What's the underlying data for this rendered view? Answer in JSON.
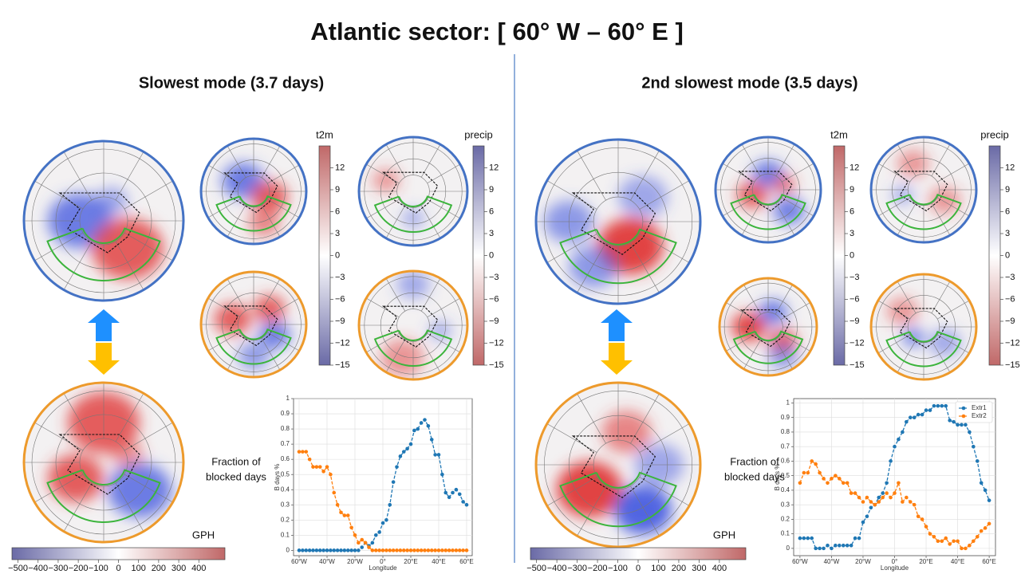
{
  "title": "Atlantic sector: [ 60° W – 60° E ]",
  "panels": [
    {
      "heading": "Slowest mode (3.7 days)",
      "colorbars": [
        {
          "label": "t2m",
          "lim": [
            -15,
            15
          ],
          "colors": [
            "#c06868",
            "#ffffff",
            "#6a6aa6"
          ],
          "ticks": [
            12,
            9,
            6,
            3,
            0,
            {
              "value": -3,
              "label": "−3"
            },
            {
              "value": -6,
              "label": "−6"
            },
            {
              "value": -9,
              "label": "−9"
            },
            {
              "value": -12,
              "label": "−12"
            },
            {
              "value": -15,
              "label": "−15"
            }
          ]
        },
        {
          "label": "precip",
          "lim": [
            -15,
            15
          ],
          "colors": [
            "#6a6aa6",
            "#ffffff",
            "#c06868"
          ],
          "ticks": [
            12,
            9,
            6,
            3,
            0,
            {
              "value": -3,
              "label": "−3"
            },
            {
              "value": -6,
              "label": "−6"
            },
            {
              "value": -9,
              "label": "−9"
            },
            {
              "value": -12,
              "label": "−12"
            },
            {
              "value": -15,
              "label": "−15"
            }
          ]
        }
      ],
      "gph_colorbar": {
        "label": "GPH",
        "lim": [
          -530,
          530
        ],
        "colors": [
          "#6a6aa6",
          "#ffffff",
          "#c06868"
        ],
        "ticks": [
          {
            "value": -500,
            "label": "−500"
          },
          {
            "value": -400,
            "label": "−400"
          },
          {
            "value": -300,
            "label": "−300"
          },
          {
            "value": -200,
            "label": "−200"
          },
          {
            "value": -100,
            "label": "−100"
          },
          0,
          100,
          200,
          300,
          400
        ]
      },
      "caption": [
        "Fraction of",
        "blocked days"
      ]
    },
    {
      "heading": "2nd slowest mode (3.5 days)",
      "colorbars": [
        {
          "label": "t2m",
          "lim": [
            -15,
            15
          ],
          "colors": [
            "#c06868",
            "#ffffff",
            "#6a6aa6"
          ],
          "ticks": [
            12,
            9,
            6,
            3,
            0,
            {
              "value": -3,
              "label": "−3"
            },
            {
              "value": -6,
              "label": "−6"
            },
            {
              "value": -9,
              "label": "−9"
            },
            {
              "value": -12,
              "label": "−12"
            },
            {
              "value": -15,
              "label": "−15"
            }
          ]
        },
        {
          "label": "precip",
          "lim": [
            -15,
            15
          ],
          "colors": [
            "#6a6aa6",
            "#ffffff",
            "#c06868"
          ],
          "ticks": [
            12,
            9,
            6,
            3,
            0,
            {
              "value": -3,
              "label": "−3"
            },
            {
              "value": -6,
              "label": "−6"
            },
            {
              "value": -9,
              "label": "−9"
            },
            {
              "value": -12,
              "label": "−12"
            },
            {
              "value": -15,
              "label": "−15"
            }
          ]
        }
      ],
      "gph_colorbar": {
        "label": "GPH",
        "lim": [
          -530,
          530
        ],
        "colors": [
          "#6a6aa6",
          "#ffffff",
          "#c06868"
        ],
        "ticks": [
          {
            "value": -500,
            "label": "−500"
          },
          {
            "value": -400,
            "label": "−400"
          },
          {
            "value": -300,
            "label": "−300"
          },
          {
            "value": -200,
            "label": "−200"
          },
          {
            "value": -100,
            "label": "−100"
          },
          0,
          100,
          200,
          300,
          400
        ]
      },
      "caption": [
        "Fraction of",
        "blocked days"
      ]
    }
  ],
  "chart_data": [
    {
      "type": "line",
      "xlabel": "Longitude",
      "ylabel": "B days %",
      "x": [
        -60,
        -57.5,
        -55,
        -52.5,
        -50,
        -47.5,
        -45,
        -42.5,
        -40,
        -37.5,
        -35,
        -32.5,
        -30,
        -27.5,
        -25,
        -22.5,
        -20,
        -17.5,
        -15,
        -12.5,
        -10,
        -7.5,
        -5,
        -2.5,
        0,
        2.5,
        5,
        7.5,
        10,
        12.5,
        15,
        17.5,
        20,
        22.5,
        25,
        27.5,
        30,
        32.5,
        35,
        37.5,
        40,
        42.5,
        45,
        47.5,
        50,
        52.5,
        55,
        57.5,
        60
      ],
      "series": [
        {
          "color": "#1f77b4",
          "values": [
            0,
            0,
            0,
            0,
            0,
            0,
            0,
            0,
            0,
            0,
            0,
            0,
            0,
            0,
            0,
            0,
            0,
            0,
            0.02,
            0.05,
            0.03,
            0.05,
            0.1,
            0.12,
            0.18,
            0.2,
            0.3,
            0.45,
            0.55,
            0.62,
            0.65,
            0.67,
            0.7,
            0.79,
            0.8,
            0.84,
            0.86,
            0.82,
            0.73,
            0.63,
            0.63,
            0.5,
            0.38,
            0.35,
            0.38,
            0.4,
            0.37,
            0.32,
            0.3
          ]
        },
        {
          "color": "#ff7f0e",
          "values": [
            0.65,
            0.65,
            0.65,
            0.6,
            0.55,
            0.55,
            0.55,
            0.52,
            0.55,
            0.5,
            0.38,
            0.3,
            0.25,
            0.23,
            0.23,
            0.15,
            0.1,
            0.05,
            0.07,
            0.05,
            0.02,
            0,
            0,
            0,
            0,
            0,
            0,
            0,
            0,
            0,
            0,
            0,
            0,
            0,
            0,
            0,
            0,
            0,
            0,
            0,
            0,
            0,
            0,
            0,
            0,
            0,
            0,
            0,
            0
          ]
        }
      ],
      "xlim": [
        -64,
        64
      ],
      "xticks": [
        {
          "value": -60,
          "label": "60°W"
        },
        {
          "value": -40,
          "label": "40°W"
        },
        {
          "value": -20,
          "label": "20°W"
        },
        {
          "value": 0,
          "label": "0°"
        },
        {
          "value": 20,
          "label": "20°E"
        },
        {
          "value": 40,
          "label": "40°E"
        },
        {
          "value": 60,
          "label": "60°E"
        }
      ],
      "ylim": [
        -0.035,
        1.0
      ],
      "yticks": [
        0,
        0.1,
        0.2,
        0.3,
        0.4,
        0.5,
        0.6,
        0.7,
        0.8,
        0.9,
        1
      ],
      "grid": true
    },
    {
      "type": "line",
      "xlabel": "Longitude",
      "ylabel": "B days %",
      "x": [
        -60,
        -57.5,
        -55,
        -52.5,
        -50,
        -47.5,
        -45,
        -42.5,
        -40,
        -37.5,
        -35,
        -32.5,
        -30,
        -27.5,
        -25,
        -22.5,
        -20,
        -17.5,
        -15,
        -12.5,
        -10,
        -7.5,
        -5,
        -2.5,
        0,
        2.5,
        5,
        7.5,
        10,
        12.5,
        15,
        17.5,
        20,
        22.5,
        25,
        27.5,
        30,
        32.5,
        35,
        37.5,
        40,
        42.5,
        45,
        47.5,
        50,
        52.5,
        55,
        57.5,
        60
      ],
      "series": [
        {
          "name": "Extr1",
          "color": "#1f77b4",
          "values": [
            0.07,
            0.07,
            0.07,
            0.07,
            0,
            0,
            0,
            0.02,
            0,
            0.02,
            0.02,
            0.02,
            0.02,
            0.02,
            0.07,
            0.07,
            0.18,
            0.22,
            0.28,
            0.3,
            0.35,
            0.38,
            0.45,
            0.6,
            0.7,
            0.75,
            0.8,
            0.87,
            0.9,
            0.9,
            0.92,
            0.92,
            0.95,
            0.95,
            0.98,
            0.98,
            0.98,
            0.98,
            0.88,
            0.87,
            0.85,
            0.85,
            0.85,
            0.8,
            0.7,
            0.6,
            0.45,
            0.4,
            0.33
          ]
        },
        {
          "name": "Extr2",
          "color": "#ff7f0e",
          "values": [
            0.45,
            0.52,
            0.52,
            0.6,
            0.58,
            0.52,
            0.48,
            0.45,
            0.48,
            0.5,
            0.48,
            0.45,
            0.45,
            0.38,
            0.38,
            0.35,
            0.32,
            0.35,
            0.32,
            0.3,
            0.32,
            0.35,
            0.38,
            0.35,
            0.38,
            0.45,
            0.32,
            0.35,
            0.32,
            0.3,
            0.22,
            0.2,
            0.15,
            0.1,
            0.08,
            0.05,
            0.05,
            0.07,
            0.03,
            0.05,
            0.05,
            0,
            0,
            0.02,
            0.05,
            0.08,
            0.12,
            0.14,
            0.17
          ]
        }
      ],
      "xlim": [
        -64,
        64
      ],
      "xticks": [
        {
          "value": -60,
          "label": "60°W"
        },
        {
          "value": -40,
          "label": "40°W"
        },
        {
          "value": -20,
          "label": "20°W"
        },
        {
          "value": 0,
          "label": "0°"
        },
        {
          "value": 20,
          "label": "20°E"
        },
        {
          "value": 40,
          "label": "40°E"
        },
        {
          "value": 60,
          "label": "60°E"
        }
      ],
      "ylim": [
        -0.05,
        1.03
      ],
      "yticks": [
        0,
        0.1,
        0.2,
        0.3,
        0.4,
        0.5,
        0.6,
        0.7,
        0.8,
        0.9,
        1
      ],
      "grid": true,
      "legend": "upper right"
    }
  ]
}
